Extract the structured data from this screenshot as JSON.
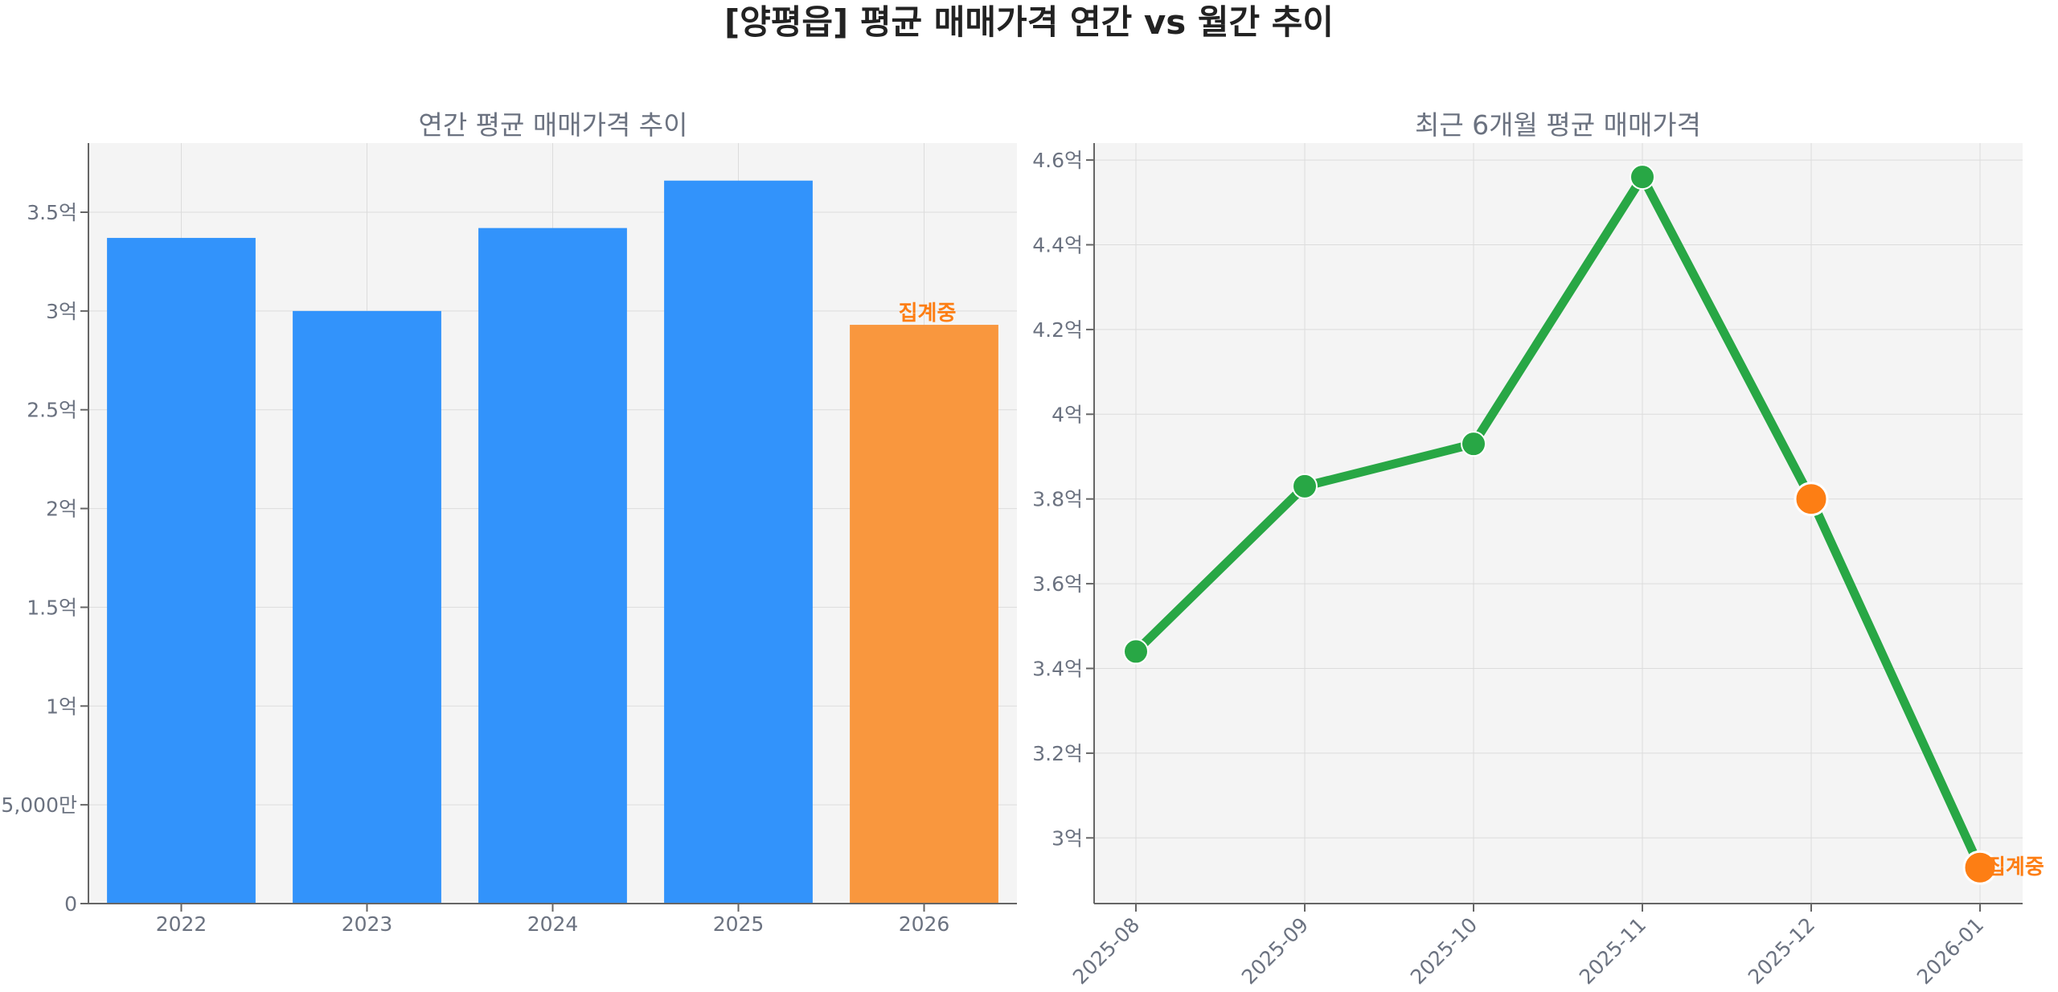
{
  "title": "[양평읍] 평균 매매가격 연간 vs 월간 추이",
  "colors": {
    "bar": "#3293fb",
    "bar_partial": "#f9973e",
    "line": "#28a745",
    "marker_partial": "#fd7e14",
    "annotation": "#fd7e14"
  },
  "chart_data": [
    {
      "type": "bar",
      "title": "연간 평균 매매가격 추이",
      "xlabel": "",
      "ylabel": "",
      "categories": [
        "2022",
        "2023",
        "2024",
        "2025",
        "2026"
      ],
      "values": [
        33700,
        30000,
        34200,
        36600,
        29300
      ],
      "partial_index": 4,
      "annotation": "집계중",
      "ylim": [
        0,
        38500
      ],
      "yticks": [
        0,
        5000,
        10000,
        15000,
        20000,
        25000,
        30000,
        35000
      ],
      "ytick_labels": [
        "0",
        "5,000만",
        "1억",
        "1.5억",
        "2억",
        "2.5억",
        "3억",
        "3.5억"
      ],
      "grid": true,
      "unit": "만원"
    },
    {
      "type": "line",
      "title": "최근 6개월 평균 매매가격",
      "xlabel": "",
      "ylabel": "",
      "x": [
        "2025-08",
        "2025-09",
        "2025-10",
        "2025-11",
        "2025-12",
        "2026-01"
      ],
      "values": [
        34400,
        38300,
        39300,
        45600,
        38000,
        29300
      ],
      "partial_indices": [
        4,
        5
      ],
      "annotation": "집계중",
      "ylim": [
        28450,
        46400
      ],
      "yticks": [
        30000,
        32000,
        34000,
        36000,
        38000,
        40000,
        42000,
        44000,
        46000
      ],
      "ytick_labels": [
        "3억",
        "3.2억",
        "3.4억",
        "3.6억",
        "3.8억",
        "4억",
        "4.2억",
        "4.4억",
        "4.6억"
      ],
      "grid": true,
      "unit": "만원"
    }
  ]
}
